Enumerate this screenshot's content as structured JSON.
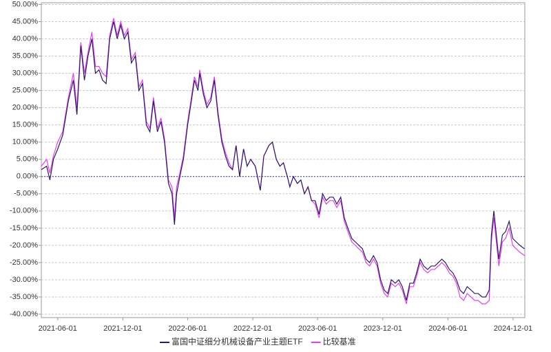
{
  "chart_data": {
    "type": "line",
    "x": [
      "2021-04-16",
      "2021-05-01",
      "2021-05-10",
      "2021-05-20",
      "2021-06-01",
      "2021-06-15",
      "2021-07-01",
      "2021-07-15",
      "2021-07-25",
      "2021-08-05",
      "2021-08-15",
      "2021-08-25",
      "2021-09-05",
      "2021-09-15",
      "2021-09-25",
      "2021-10-05",
      "2021-10-15",
      "2021-10-25",
      "2021-11-05",
      "2021-11-15",
      "2021-11-25",
      "2021-12-05",
      "2021-12-15",
      "2021-12-25",
      "2022-01-05",
      "2022-01-15",
      "2022-01-25",
      "2022-02-05",
      "2022-02-15",
      "2022-02-25",
      "2022-03-08",
      "2022-03-18",
      "2022-03-28",
      "2022-04-08",
      "2022-04-18",
      "2022-04-25",
      "2022-05-01",
      "2022-05-10",
      "2022-05-20",
      "2022-06-01",
      "2022-06-10",
      "2022-06-20",
      "2022-06-30",
      "2022-07-05",
      "2022-07-15",
      "2022-07-25",
      "2022-08-05",
      "2022-08-15",
      "2022-08-25",
      "2022-09-05",
      "2022-09-15",
      "2022-09-25",
      "2022-10-05",
      "2022-10-15",
      "2022-10-25",
      "2022-11-05",
      "2022-11-15",
      "2022-11-25",
      "2022-12-08",
      "2022-12-22",
      "2023-01-01",
      "2023-01-15",
      "2023-01-25",
      "2023-02-05",
      "2023-02-15",
      "2023-02-25",
      "2023-03-08",
      "2023-03-15",
      "2023-03-25",
      "2023-04-05",
      "2023-04-15",
      "2023-04-25",
      "2023-05-05",
      "2023-05-15",
      "2023-05-25",
      "2023-06-05",
      "2023-06-15",
      "2023-06-25",
      "2023-07-05",
      "2023-07-15",
      "2023-07-25",
      "2023-08-05",
      "2023-08-15",
      "2023-08-25",
      "2023-09-05",
      "2023-09-15",
      "2023-09-25",
      "2023-10-05",
      "2023-10-15",
      "2023-10-25",
      "2023-11-05",
      "2023-11-15",
      "2023-11-25",
      "2023-12-05",
      "2023-12-15",
      "2023-12-25",
      "2024-01-05",
      "2024-01-15",
      "2024-01-25",
      "2024-02-05",
      "2024-02-15",
      "2024-02-25",
      "2024-03-05",
      "2024-03-15",
      "2024-03-25",
      "2024-04-05",
      "2024-04-15",
      "2024-04-25",
      "2024-05-05",
      "2024-05-15",
      "2024-05-25",
      "2024-06-05",
      "2024-06-15",
      "2024-06-25",
      "2024-07-05",
      "2024-07-15",
      "2024-07-25",
      "2024-08-05",
      "2024-08-15",
      "2024-08-25",
      "2024-09-05",
      "2024-09-15",
      "2024-09-25",
      "2024-10-01",
      "2024-10-08",
      "2024-10-15",
      "2024-10-22",
      "2024-11-01",
      "2024-11-10",
      "2024-11-20",
      "2024-11-30",
      "2024-12-10",
      "2024-12-20",
      "2025-01-02"
    ],
    "series": [
      {
        "name": "富国中证细分机械设备产业主题ETF",
        "color": "#2b1869",
        "values": [
          2,
          3,
          -1,
          5,
          8,
          12,
          22,
          28,
          18,
          38,
          28,
          35,
          40,
          30,
          31,
          28,
          27,
          40,
          45,
          40,
          44,
          40,
          42,
          33,
          35,
          25,
          27,
          15,
          13,
          22,
          13,
          16,
          10,
          -2,
          -5,
          -14,
          -5,
          0,
          5,
          15,
          21,
          28,
          25,
          30,
          24,
          20,
          22,
          28,
          18,
          10,
          6,
          3,
          2,
          9,
          0,
          8,
          3,
          5,
          3,
          -4,
          6,
          9,
          10,
          5,
          3,
          4,
          0,
          -3,
          0,
          -2,
          -1,
          -5,
          -3,
          -7,
          -7,
          -11,
          -5,
          -7,
          -6,
          -6,
          -8,
          -6,
          -12,
          -15,
          -18,
          -19,
          -20,
          -21,
          -24,
          -25,
          -23,
          -25,
          -30,
          -33,
          -34,
          -30,
          -31,
          -30,
          -32,
          -36,
          -31,
          -31,
          -28,
          -24,
          -26,
          -27,
          -26,
          -26,
          -25,
          -24,
          -25,
          -27,
          -28,
          -30,
          -33,
          -34,
          -32,
          -33,
          -34,
          -34,
          -35,
          -35,
          -33,
          -17,
          -10,
          -17,
          -24,
          -17,
          -16,
          -13,
          -18,
          -19,
          -20,
          -21
        ]
      },
      {
        "name": "比较基准",
        "color": "#e33ff0",
        "values": [
          3,
          5,
          1,
          6,
          10,
          13,
          23,
          30,
          20,
          39,
          30,
          36,
          42,
          32,
          32,
          30,
          29,
          41,
          46,
          41,
          45,
          41,
          43,
          34,
          36,
          26,
          28,
          16,
          14,
          23,
          14,
          17,
          11,
          -1,
          -3,
          -12,
          -3,
          1,
          6,
          16,
          22,
          29,
          26,
          31,
          25,
          21,
          23,
          29,
          19,
          11,
          7,
          4,
          2,
          9,
          0,
          8,
          3,
          5,
          3,
          -4,
          6,
          9,
          10,
          5,
          3,
          4,
          0,
          -3,
          0,
          -2,
          -1,
          -5,
          -3,
          -7,
          -8,
          -12,
          -6,
          -8,
          -7,
          -7,
          -9,
          -7,
          -13,
          -16,
          -19,
          -20,
          -21,
          -22,
          -25,
          -26,
          -24,
          -26,
          -31,
          -34,
          -35,
          -31,
          -32,
          -31,
          -33,
          -37,
          -32,
          -32,
          -29,
          -25,
          -27,
          -28,
          -27,
          -27,
          -26,
          -25,
          -26,
          -28,
          -29,
          -31,
          -35,
          -36,
          -34,
          -35,
          -36,
          -36,
          -37,
          -37,
          -36,
          -19,
          -12,
          -19,
          -26,
          -19,
          -18,
          -15,
          -20,
          -21,
          -22,
          -23
        ]
      }
    ],
    "xlim": [
      "2021-04-16",
      "2025-01-03"
    ],
    "xticks": [
      "2021-06-01",
      "2021-12-01",
      "2022-06-01",
      "2022-12-01",
      "2023-06-01",
      "2023-12-01",
      "2024-06-01",
      "2024-12-01"
    ],
    "ylim": [
      -41,
      50.5
    ],
    "yticks": [
      {
        "value": 50,
        "label": "50.00%"
      },
      {
        "value": 45,
        "label": "45.00%"
      },
      {
        "value": 40,
        "label": "40.00%"
      },
      {
        "value": 35,
        "label": "35.00%"
      },
      {
        "value": 30,
        "label": "30.00%"
      },
      {
        "value": 25,
        "label": "25.00%"
      },
      {
        "value": 20,
        "label": "20.00%"
      },
      {
        "value": 15,
        "label": "15.00%"
      },
      {
        "value": 10,
        "label": "10.00%"
      },
      {
        "value": 5,
        "label": "5.00%"
      },
      {
        "value": 0,
        "label": "0.00%"
      },
      {
        "value": -5,
        "label": "-5.00%"
      },
      {
        "value": -10,
        "label": "-10.00%"
      },
      {
        "value": -15,
        "label": "-15.00%"
      },
      {
        "value": -20,
        "label": "-20.00%"
      },
      {
        "value": -25,
        "label": "-25.00%"
      },
      {
        "value": -30,
        "label": "-30.00%"
      },
      {
        "value": -35,
        "label": "-35.00%"
      },
      {
        "value": -40,
        "label": "-40.00%"
      }
    ],
    "grid": true
  }
}
